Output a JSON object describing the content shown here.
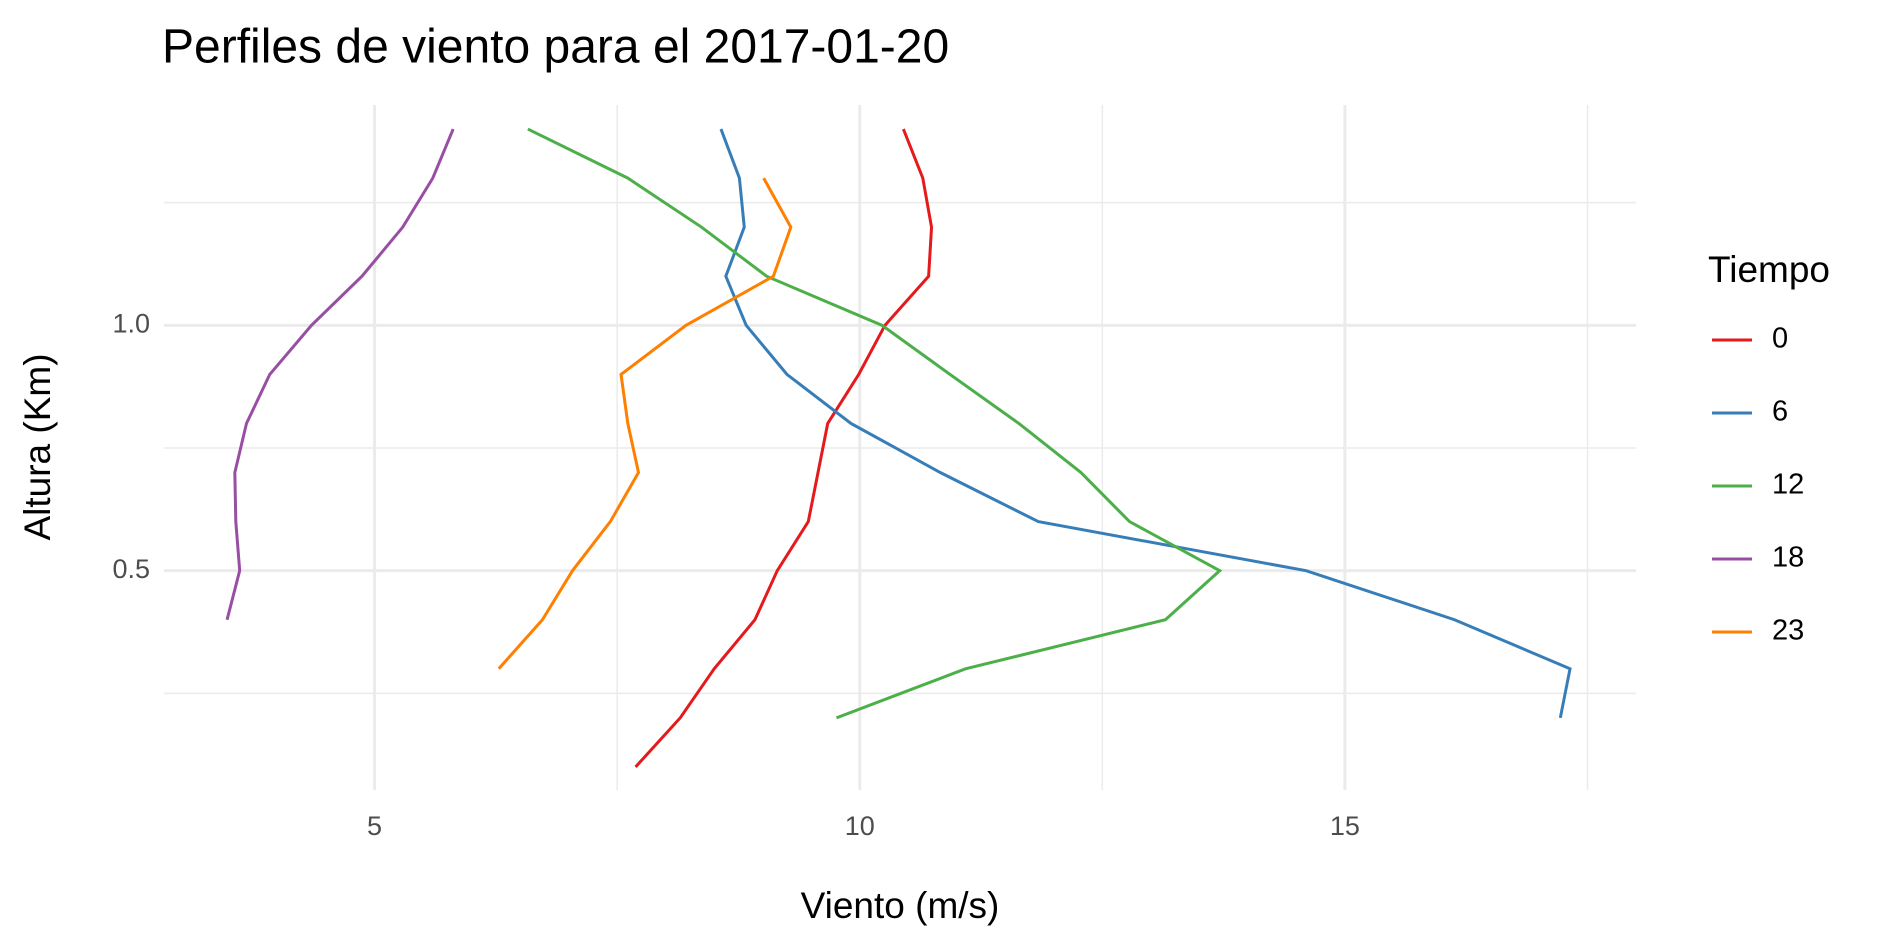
{
  "chart_data": {
    "type": "path",
    "title": "Perfiles de viento para el 2017-01-20",
    "x_label": "Viento (m/s)",
    "y_label": "Altura (Km)",
    "legend_title": "Tiempo",
    "xlim": [
      2.83,
      18.0
    ],
    "xticks": [
      5,
      10,
      15
    ],
    "x_minor_grid": [
      7.5,
      12.5,
      17.5
    ],
    "ylim": [
      0.053,
      1.449
    ],
    "yticks": [
      {
        "value": 0.5,
        "label": "0.5"
      },
      {
        "value": 1,
        "label": "1.0"
      }
    ],
    "y_minor_grid": [
      0.25,
      0.75,
      1.25
    ],
    "grid": true,
    "legend": "right",
    "series": [
      {
        "name": "0",
        "color": "#e41a1c",
        "x": [
          7.69,
          8.15,
          8.5,
          8.92,
          9.15,
          9.47,
          9.57,
          9.67,
          9.99,
          10.26,
          10.71,
          10.74,
          10.65,
          10.45
        ],
        "values": [
          0.1,
          0.2,
          0.3,
          0.4,
          0.5,
          0.6,
          0.7,
          0.8,
          0.9,
          1.0,
          1.1,
          1.2,
          1.3,
          1.4
        ]
      },
      {
        "name": "6",
        "color": "#377eb8",
        "x": [
          17.22,
          17.32,
          16.13,
          14.6,
          11.84,
          10.83,
          9.91,
          9.25,
          8.83,
          8.62,
          8.81,
          8.76,
          8.57
        ],
        "values": [
          0.2,
          0.3,
          0.4,
          0.5,
          0.6,
          0.7,
          0.8,
          0.9,
          1.0,
          1.1,
          1.2,
          1.3,
          1.4
        ]
      },
      {
        "name": "12",
        "color": "#4daf4a",
        "x": [
          9.76,
          11.09,
          13.15,
          13.71,
          12.78,
          12.28,
          11.64,
          10.93,
          10.23,
          9.04,
          8.37,
          7.61,
          6.58
        ],
        "values": [
          0.2,
          0.3,
          0.4,
          0.5,
          0.6,
          0.7,
          0.8,
          0.9,
          1.0,
          1.1,
          1.2,
          1.3,
          1.4
        ]
      },
      {
        "name": "18",
        "color": "#984ea3",
        "x": [
          3.48,
          3.61,
          3.57,
          3.56,
          3.68,
          3.92,
          4.35,
          4.87,
          5.29,
          5.6,
          5.81
        ],
        "values": [
          0.4,
          0.5,
          0.6,
          0.7,
          0.8,
          0.9,
          1.0,
          1.1,
          1.2,
          1.3,
          1.4
        ]
      },
      {
        "name": "23",
        "color": "#ff7f00",
        "x": [
          6.28,
          6.73,
          7.04,
          7.43,
          7.72,
          7.61,
          7.54,
          8.21,
          9.11,
          9.29,
          9.01
        ],
        "values": [
          0.3,
          0.4,
          0.5,
          0.6,
          0.7,
          0.8,
          0.9,
          1.0,
          1.1,
          1.2,
          1.3
        ]
      }
    ]
  }
}
